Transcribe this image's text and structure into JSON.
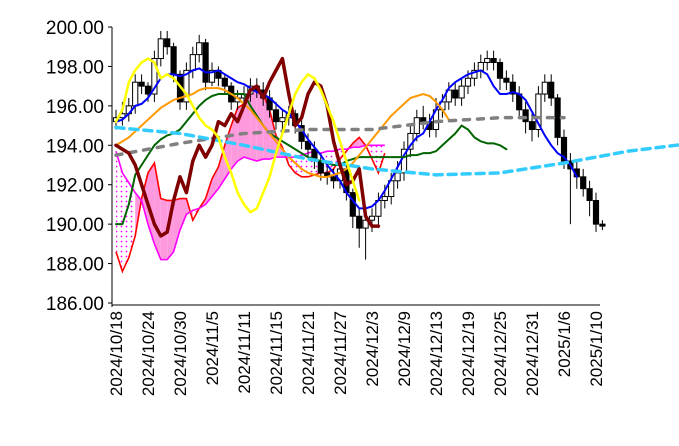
{
  "chart_data": {
    "type": "line",
    "subtype": "candlestick-ichimoku",
    "y_axis": {
      "ylim": [
        186.0,
        200.0
      ],
      "ticks": [
        "200.00",
        "198.00",
        "196.00",
        "194.00",
        "192.00",
        "190.00",
        "188.00",
        "186.00"
      ],
      "tick_values": [
        200,
        198,
        196,
        194,
        192,
        190,
        188,
        186
      ]
    },
    "x_axis": {
      "tick_labels": [
        "2024/10/18",
        "2024/10/24",
        "2024/10/30",
        "2024/11/5",
        "2024/11/11",
        "2024/11/15",
        "2024/11/21",
        "2024/11/27",
        "2024/12/3",
        "2024/12/9",
        "2024/12/13",
        "2024/12/19",
        "2024/12/25",
        "2024/12/31",
        "2025/1/6",
        "2025/1/10"
      ],
      "tick_index": [
        0,
        5,
        10,
        15,
        20,
        25,
        30,
        35,
        40,
        45,
        50,
        55,
        60,
        65,
        70,
        75
      ]
    },
    "grid": false,
    "legend": "none",
    "candles": {
      "open": [
        195.2,
        195.4,
        195.6,
        196.0,
        197.2,
        197.0,
        196.6,
        198.4,
        199.4,
        199.0,
        197.6,
        196.2,
        197.8,
        198.6,
        199.2,
        197.2,
        197.8,
        197.4,
        197.0,
        196.2,
        196.4,
        196.6,
        197.0,
        196.8,
        196.4,
        195.8,
        195.2,
        195.4,
        195.6,
        195.0,
        194.2,
        193.8,
        193.2,
        192.6,
        192.4,
        192.2,
        192.8,
        191.6,
        190.4,
        189.8,
        190.2,
        190.4,
        191.2,
        191.4,
        192.2,
        192.6,
        193.8,
        194.6,
        195.4,
        195.2,
        194.8,
        195.8,
        196.2,
        196.8,
        196.4,
        197.0,
        197.4,
        197.8,
        198.2,
        198.4,
        198.2,
        197.4,
        197.2,
        196.6,
        195.8,
        195.2,
        194.8,
        196.6,
        197.2,
        196.4,
        194.4,
        193.2,
        192.8,
        192.4,
        191.8,
        191.2,
        190.0
      ],
      "close": [
        195.4,
        195.6,
        196.0,
        197.2,
        197.0,
        196.6,
        198.4,
        199.4,
        199.0,
        197.6,
        196.2,
        197.8,
        198.6,
        199.2,
        197.2,
        197.8,
        197.4,
        197.0,
        196.2,
        196.4,
        196.6,
        197.0,
        196.8,
        196.4,
        195.8,
        195.2,
        195.4,
        195.6,
        195.0,
        194.2,
        193.8,
        193.2,
        192.6,
        192.4,
        192.2,
        192.8,
        191.6,
        190.4,
        189.8,
        190.2,
        190.4,
        191.2,
        191.4,
        192.2,
        192.6,
        193.8,
        194.6,
        195.4,
        195.2,
        194.8,
        195.8,
        196.2,
        196.8,
        196.4,
        197.0,
        197.4,
        197.8,
        198.2,
        198.4,
        198.2,
        197.4,
        197.2,
        196.6,
        195.8,
        195.2,
        194.8,
        196.6,
        197.2,
        196.4,
        194.4,
        193.2,
        192.8,
        192.4,
        191.8,
        191.2,
        190.0,
        189.9
      ],
      "high": [
        195.8,
        196.2,
        196.4,
        197.6,
        197.6,
        197.2,
        198.8,
        199.8,
        199.8,
        199.2,
        197.8,
        198.2,
        199.0,
        199.6,
        199.4,
        198.2,
        198.0,
        197.6,
        197.2,
        196.8,
        197.0,
        197.4,
        197.4,
        197.2,
        196.8,
        196.2,
        195.8,
        196.0,
        195.8,
        195.4,
        194.6,
        194.2,
        193.6,
        193.0,
        192.8,
        193.2,
        193.0,
        191.8,
        190.8,
        190.6,
        190.8,
        191.6,
        192.0,
        192.6,
        193.2,
        194.2,
        195.0,
        195.8,
        196.0,
        195.6,
        196.4,
        196.6,
        197.2,
        197.2,
        197.4,
        197.8,
        198.2,
        198.6,
        198.8,
        198.8,
        198.4,
        197.8,
        197.6,
        197.0,
        196.2,
        195.6,
        197.0,
        197.6,
        197.6,
        196.6,
        194.8,
        193.6,
        193.2,
        192.8,
        192.2,
        191.6,
        190.2
      ],
      "low": [
        194.8,
        195.0,
        195.2,
        195.6,
        196.6,
        196.2,
        196.2,
        198.0,
        198.6,
        197.2,
        195.8,
        195.8,
        197.4,
        198.2,
        196.8,
        197.0,
        197.0,
        196.6,
        195.8,
        195.8,
        196.0,
        196.2,
        196.4,
        196.0,
        195.4,
        194.8,
        194.8,
        195.0,
        194.6,
        193.8,
        193.4,
        192.8,
        192.2,
        192.0,
        191.8,
        191.8,
        191.2,
        189.8,
        188.8,
        188.2,
        189.6,
        189.8,
        190.8,
        191.0,
        191.8,
        192.2,
        193.4,
        194.2,
        194.8,
        194.4,
        194.4,
        195.4,
        195.8,
        196.0,
        196.0,
        196.6,
        197.0,
        197.4,
        197.8,
        197.8,
        196.8,
        196.8,
        196.2,
        195.4,
        194.6,
        194.2,
        194.4,
        196.2,
        196.0,
        194.0,
        192.8,
        190.0,
        191.8,
        191.4,
        190.4,
        189.6,
        189.7
      ]
    },
    "series": [
      {
        "color": "#0000ff",
        "width": 2,
        "dash": "",
        "start": 0,
        "values": [
          195.2,
          195.3,
          195.6,
          196.0,
          196.1,
          196.4,
          196.9,
          197.4,
          197.6,
          197.6,
          197.5,
          197.6,
          197.8,
          197.9,
          197.7,
          197.7,
          197.8,
          197.6,
          197.4,
          197.2,
          197.1,
          196.9,
          196.7,
          196.6,
          196.4,
          196.1,
          195.8,
          195.6,
          195.2,
          194.8,
          194.3,
          193.9,
          193.5,
          193.0,
          192.6,
          192.2,
          191.6,
          191.2,
          190.8,
          190.8,
          190.9,
          191.2,
          191.7,
          192.3,
          192.9,
          193.5,
          194.0,
          194.4,
          194.6,
          195.2,
          195.8,
          196.3,
          196.9,
          197.2,
          197.4,
          197.6,
          197.7,
          197.8,
          197.6,
          197.0,
          196.6,
          196.6,
          196.7,
          196.6,
          196.3,
          195.7,
          195.1,
          194.5,
          194.0,
          193.6,
          193.4,
          193.0,
          192.4
        ]
      },
      {
        "color": "#006400",
        "width": 2,
        "dash": "",
        "start": 0,
        "values": [
          190.0,
          190.0,
          191.0,
          192.5,
          193.0,
          193.5,
          194.0,
          194.3,
          194.5,
          194.6,
          194.8,
          195.2,
          195.6,
          196.0,
          196.3,
          196.5,
          196.6,
          196.6,
          196.6,
          196.6,
          196.6,
          196.0,
          195.5,
          195.0,
          194.6,
          194.4,
          194.2,
          194.0,
          193.8,
          193.6,
          193.4,
          193.3,
          193.2,
          193.1,
          193.0,
          193.0,
          193.2,
          193.3,
          193.4,
          193.4,
          193.4,
          193.4,
          193.4,
          193.4,
          193.4,
          193.4,
          193.5,
          193.5,
          193.6,
          193.6,
          193.7,
          194.0,
          194.3,
          194.6,
          195.0,
          194.8,
          194.4,
          194.2,
          194.1,
          194.1,
          194.0,
          193.8
        ]
      },
      {
        "color": "#ff9900",
        "width": 2,
        "dash": "",
        "start": 0,
        "values": [
          194.0,
          194.2,
          194.4,
          194.7,
          195.0,
          195.3,
          195.6,
          195.9,
          196.1,
          196.3,
          196.4,
          196.5,
          196.6,
          196.8,
          196.9,
          196.9,
          196.9,
          196.8,
          196.6,
          196.4,
          196.1,
          195.8,
          195.4,
          195.0,
          194.6,
          194.2,
          193.8,
          193.4,
          193.1,
          192.8,
          192.6,
          192.5,
          192.4,
          192.4,
          192.5,
          192.6,
          192.8,
          193.1,
          193.5,
          193.9,
          194.3,
          194.7,
          195.1,
          195.5,
          195.8,
          196.1,
          196.4,
          196.5,
          196.6,
          196.5,
          196.2,
          195.8,
          195.3
        ]
      },
      {
        "color": "#ffff00",
        "width": 2.5,
        "dash": "",
        "start": 0,
        "values": [
          195.2,
          195.8,
          197.2,
          197.8,
          198.2,
          198.4,
          198.2,
          197.4,
          197.6,
          197.4,
          197.0,
          196.6,
          196.0,
          195.4,
          195.0,
          194.8,
          194.4,
          193.4,
          192.6,
          191.6,
          191.0,
          190.6,
          190.8,
          191.6,
          192.4,
          193.6,
          194.6,
          195.6,
          196.6,
          197.2,
          197.6,
          197.4,
          196.8,
          196.0,
          195.2,
          194.2,
          193.2,
          192.2,
          191.2
        ]
      },
      {
        "color": "#800000",
        "width": 3.5,
        "dash": "",
        "start": 0,
        "values": [
          194.0,
          193.8,
          193.6,
          193.0,
          192.0,
          191.0,
          190.0,
          189.4,
          189.6,
          191.2,
          192.4,
          191.6,
          193.2,
          194.0,
          193.4,
          194.0,
          195.2,
          195.0,
          195.6,
          195.2,
          196.0,
          196.8,
          197.0,
          196.4,
          197.2,
          197.8,
          198.4,
          196.6,
          195.0,
          195.4,
          196.6,
          197.2,
          197.0,
          196.0,
          194.2,
          193.0,
          192.0,
          192.2,
          192.8,
          190.4,
          189.9,
          189.9
        ]
      },
      {
        "color": "#808080",
        "width": 3.5,
        "dash": "6 8",
        "start": 0,
        "values": [
          193.5,
          194.1,
          194.6,
          194.8,
          194.8,
          195.2,
          195.4,
          195.4
        ]
      },
      {
        "color": "#33ccff",
        "width": 3.5,
        "dash": "8 6",
        "start": 0,
        "values": [
          194.9,
          194.6,
          194.0,
          193.3,
          192.8,
          192.5,
          192.6,
          193.1,
          193.7,
          194.1,
          194.5
        ]
      }
    ],
    "cloud": {
      "spanA": [
        188.6,
        187.6,
        188.3,
        189.4,
        191.3,
        192.6,
        193.1,
        191.3,
        191.2,
        191.2,
        191.3,
        191.3,
        190.2,
        190.8,
        191.3,
        192.3,
        192.9,
        194.0,
        195.0,
        195.9,
        196.1,
        196.9,
        197.0,
        196.6,
        195.8,
        194.5,
        193.9,
        193.0,
        192.6,
        192.4,
        192.4,
        192.5,
        192.6,
        192.6,
        192.8,
        193.3,
        193.7,
        194.1,
        194.4,
        194.0,
        193.3,
        192.6,
        193.6
      ],
      "spanB": [
        193.7,
        192.6,
        192.1,
        191.6,
        191.2,
        190.0,
        189.0,
        188.2,
        188.2,
        188.6,
        189.7,
        190.5,
        190.7,
        190.8,
        191.0,
        191.4,
        191.8,
        192.3,
        192.8,
        193.2,
        193.4,
        193.3,
        193.2,
        193.3,
        193.3,
        193.4,
        193.4,
        193.4,
        193.4,
        193.5,
        193.6,
        193.7,
        193.6,
        193.7,
        193.7,
        193.8,
        193.8,
        193.9,
        193.9,
        194.0,
        194.0,
        194.0,
        194.0
      ]
    }
  }
}
